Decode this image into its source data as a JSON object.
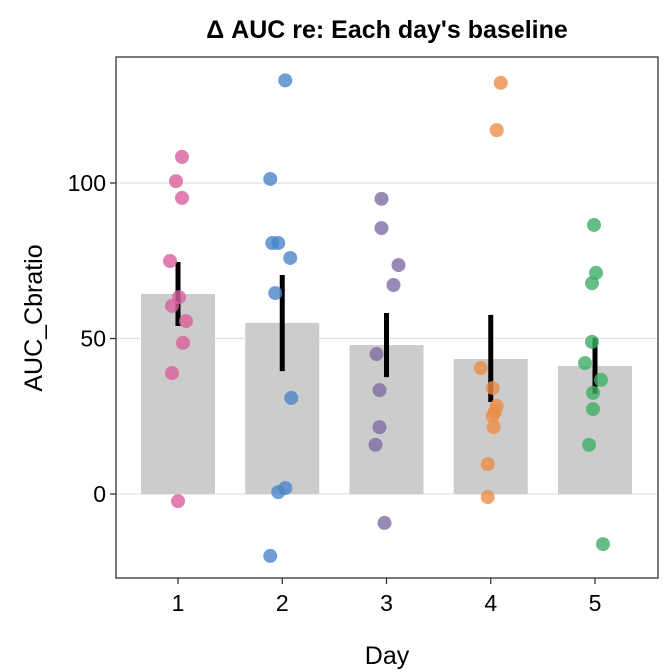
{
  "chart_data": {
    "type": "bar",
    "title": "Δ AUC re: Each day's baseline",
    "xlabel": "Day",
    "ylabel": "AUC_Cbratio",
    "categories": [
      "1",
      "2",
      "3",
      "4",
      "5"
    ],
    "ylim": [
      -27,
      140
    ],
    "yticks": [
      0,
      50,
      100
    ],
    "grid": true,
    "bar_color": "#CCCCCC",
    "bar_values": [
      64.3,
      55.0,
      47.9,
      43.4,
      41.2
    ],
    "error_bars": [
      [
        54.0,
        74.6
      ],
      [
        39.5,
        70.4
      ],
      [
        37.6,
        58.2
      ],
      [
        29.6,
        57.6
      ],
      [
        32.2,
        50.2
      ]
    ],
    "point_colors": [
      "#D95F9E",
      "#4A86C8",
      "#7E6BA3",
      "#EA8D45",
      "#3FAE66"
    ],
    "points": [
      [
        108.4,
        100.6,
        95.2,
        74.9,
        63.3,
        60.5,
        55.6,
        48.6,
        38.9,
        -2.3
      ],
      [
        133.0,
        101.3,
        80.7,
        80.7,
        75.9,
        64.6,
        30.9,
        1.9,
        0.6,
        -19.9
      ],
      [
        94.9,
        85.5,
        73.6,
        67.2,
        45.0,
        33.4,
        21.5,
        15.8,
        -9.3
      ],
      [
        132.2,
        117.0,
        40.5,
        34.1,
        28.3,
        26.4,
        25.1,
        21.5,
        9.6,
        -1.0
      ],
      [
        86.5,
        71.1,
        67.8,
        48.9,
        42.1,
        36.7,
        32.5,
        27.3,
        15.8,
        -16.1
      ]
    ]
  }
}
